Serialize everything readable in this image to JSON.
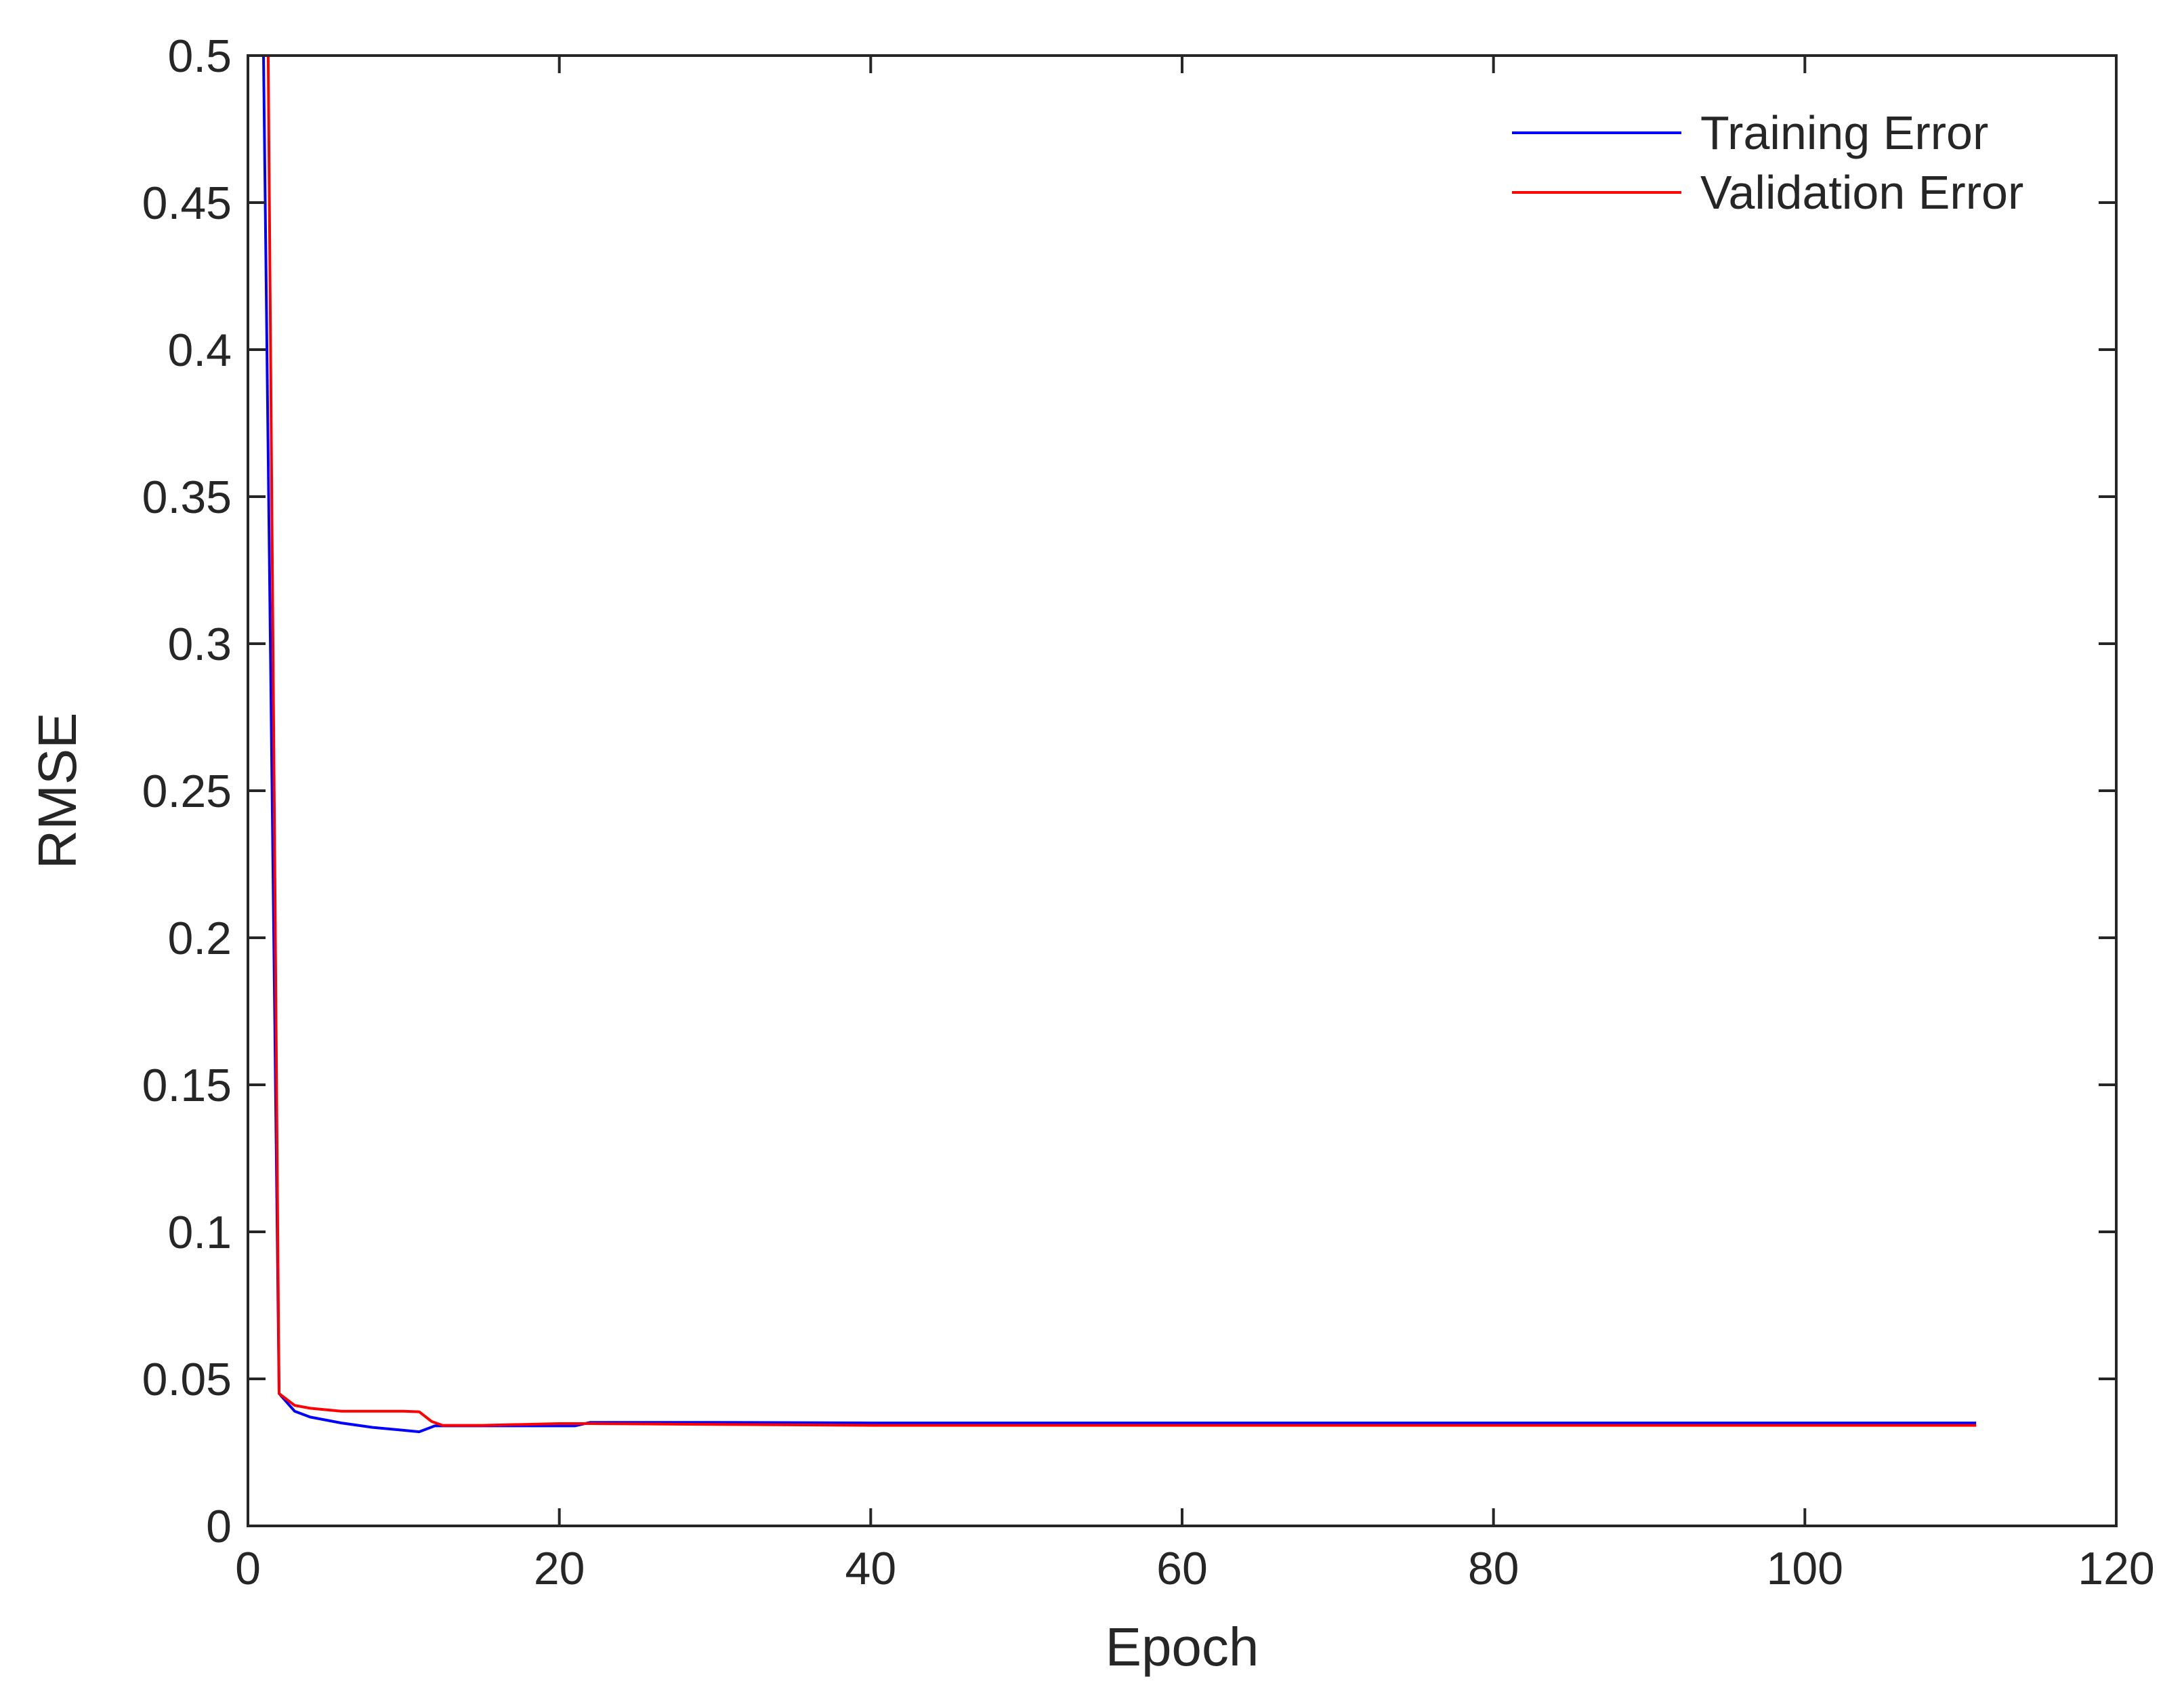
{
  "chart_data": {
    "type": "line",
    "title": "",
    "xlabel": "Epoch",
    "ylabel": "RMSE",
    "xlim": [
      0,
      120
    ],
    "ylim": [
      0,
      0.5
    ],
    "xticks": [
      0,
      20,
      40,
      60,
      80,
      100,
      120
    ],
    "xtick_labels": [
      "0",
      "20",
      "40",
      "60",
      "80",
      "100",
      "120"
    ],
    "yticks": [
      0,
      0.05,
      0.1,
      0.15,
      0.2,
      0.25,
      0.3,
      0.35,
      0.4,
      0.45,
      0.5
    ],
    "ytick_labels": [
      "0",
      "0.05",
      "0.1",
      "0.15",
      "0.2",
      "0.25",
      "0.3",
      "0.35",
      "0.4",
      "0.45",
      "0.5"
    ],
    "grid": false,
    "legend_position": "top-right",
    "series": [
      {
        "name": "Training Error",
        "color": "#0000ff",
        "x": [
          1,
          2,
          3,
          4,
          6,
          8,
          10,
          11,
          11.5,
          12,
          15,
          20,
          21,
          22,
          30,
          40,
          60,
          80,
          100,
          111
        ],
        "y": [
          0.5,
          0.045,
          0.039,
          0.037,
          0.035,
          0.0335,
          0.0325,
          0.032,
          0.033,
          0.034,
          0.034,
          0.034,
          0.034,
          0.0352,
          0.0352,
          0.035,
          0.035,
          0.035,
          0.035,
          0.035
        ]
      },
      {
        "name": "Validation Error",
        "color": "#ff0000",
        "x": [
          1.3,
          2,
          3,
          4,
          6,
          8,
          10,
          11,
          11.8,
          12.5,
          15,
          20,
          22,
          30,
          40,
          60,
          80,
          100,
          111
        ],
        "y": [
          0.5,
          0.045,
          0.041,
          0.04,
          0.039,
          0.039,
          0.039,
          0.0388,
          0.0355,
          0.0342,
          0.0342,
          0.0348,
          0.0348,
          0.0345,
          0.0342,
          0.0342,
          0.0342,
          0.0342,
          0.0342
        ]
      }
    ]
  }
}
